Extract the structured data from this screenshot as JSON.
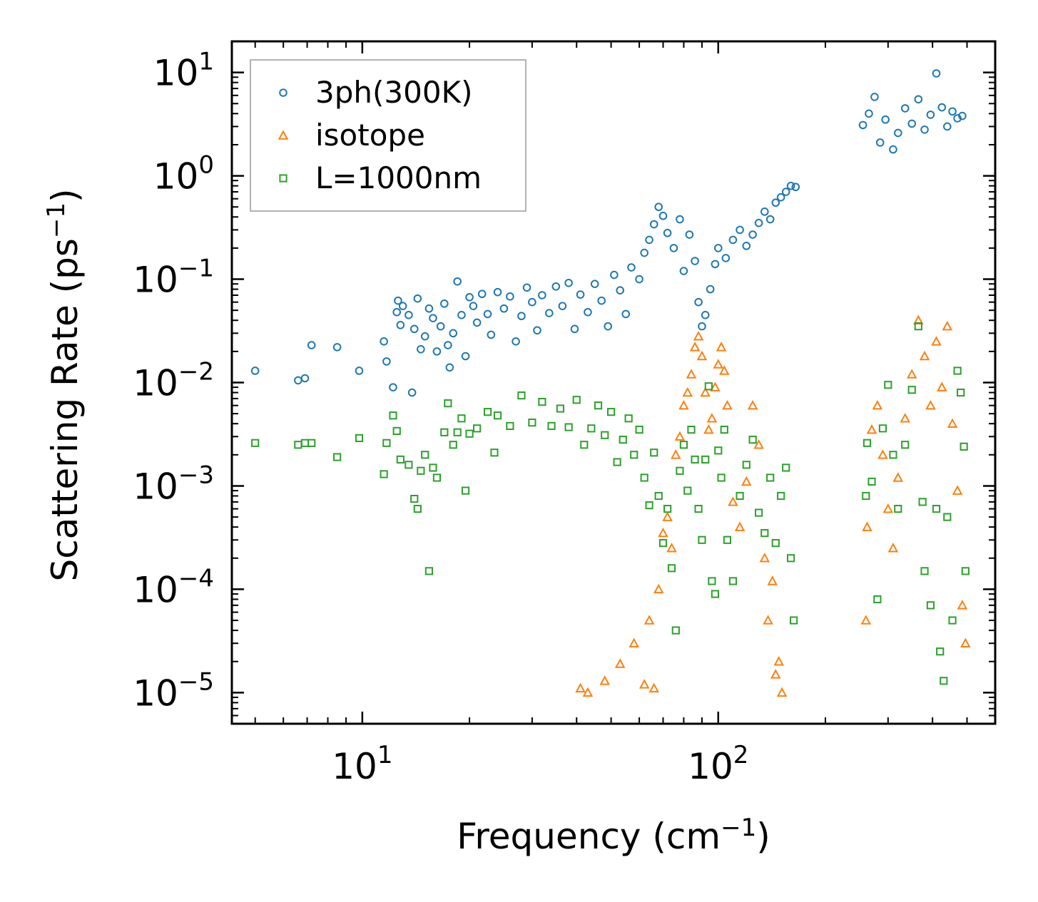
{
  "chart_data": {
    "type": "scatter",
    "title": "",
    "xlabel": {
      "base": "Frequency (cm",
      "sup": "−1",
      "close": ")"
    },
    "ylabel": {
      "base": "Scattering Rate (ps",
      "sup": "−1",
      "close": ")"
    },
    "xscale": "log",
    "yscale": "log",
    "xlim": [
      4.3,
      600
    ],
    "ylim": [
      5e-06,
      20
    ],
    "x_ticks": [
      {
        "value": 10,
        "base": "10",
        "exp": "1"
      },
      {
        "value": 100,
        "base": "10",
        "exp": "2"
      }
    ],
    "y_ticks": [
      {
        "value": 10,
        "base": "10",
        "exp": "1"
      },
      {
        "value": 1,
        "base": "10",
        "exp": "0"
      },
      {
        "value": 0.1,
        "base": "10",
        "exp": "−1"
      },
      {
        "value": 0.01,
        "base": "10",
        "exp": "−2"
      },
      {
        "value": 0.001,
        "base": "10",
        "exp": "−3"
      },
      {
        "value": 0.0001,
        "base": "10",
        "exp": "−4"
      },
      {
        "value": 1e-05,
        "base": "10",
        "exp": "−5"
      }
    ],
    "legend_position": "top-left",
    "series": [
      {
        "name": "3ph(300K)",
        "marker": "circle",
        "color": "#1f77b4",
        "points": [
          [
            5.0,
            0.013
          ],
          [
            6.6,
            0.0105
          ],
          [
            6.9,
            0.011
          ],
          [
            7.2,
            0.023
          ],
          [
            8.5,
            0.022
          ],
          [
            9.8,
            0.013
          ],
          [
            11.5,
            0.025
          ],
          [
            11.7,
            0.016
          ],
          [
            12.2,
            0.009
          ],
          [
            12.5,
            0.048
          ],
          [
            12.6,
            0.062
          ],
          [
            12.8,
            0.036
          ],
          [
            13.0,
            0.055
          ],
          [
            13.5,
            0.045
          ],
          [
            13.8,
            0.008
          ],
          [
            14.0,
            0.033
          ],
          [
            14.3,
            0.065
          ],
          [
            14.6,
            0.021
          ],
          [
            15.0,
            0.028
          ],
          [
            15.4,
            0.052
          ],
          [
            15.8,
            0.042
          ],
          [
            16.2,
            0.02
          ],
          [
            16.6,
            0.035
          ],
          [
            17.0,
            0.058
          ],
          [
            17.4,
            0.023
          ],
          [
            17.6,
            0.014
          ],
          [
            18.0,
            0.03
          ],
          [
            18.5,
            0.095
          ],
          [
            19.0,
            0.045
          ],
          [
            19.5,
            0.018
          ],
          [
            20.0,
            0.067
          ],
          [
            20.5,
            0.055
          ],
          [
            21.0,
            0.038
          ],
          [
            21.7,
            0.072
          ],
          [
            22.5,
            0.046
          ],
          [
            23.0,
            0.029
          ],
          [
            24.0,
            0.075
          ],
          [
            25.0,
            0.052
          ],
          [
            26.0,
            0.068
          ],
          [
            27.0,
            0.025
          ],
          [
            28.0,
            0.044
          ],
          [
            29.0,
            0.083
          ],
          [
            30.0,
            0.06
          ],
          [
            31.0,
            0.032
          ],
          [
            32.0,
            0.07
          ],
          [
            33.5,
            0.047
          ],
          [
            35.0,
            0.085
          ],
          [
            36.5,
            0.055
          ],
          [
            38.0,
            0.092
          ],
          [
            39.5,
            0.033
          ],
          [
            41.0,
            0.071
          ],
          [
            43.0,
            0.048
          ],
          [
            45.0,
            0.09
          ],
          [
            47.0,
            0.062
          ],
          [
            49.0,
            0.035
          ],
          [
            51.0,
            0.11
          ],
          [
            53.0,
            0.078
          ],
          [
            55.0,
            0.046
          ],
          [
            57.0,
            0.13
          ],
          [
            60.0,
            0.1
          ],
          [
            62.0,
            0.18
          ],
          [
            64.0,
            0.24
          ],
          [
            66.0,
            0.34
          ],
          [
            68.0,
            0.5
          ],
          [
            70.0,
            0.41
          ],
          [
            72.0,
            0.28
          ],
          [
            75.0,
            0.2
          ],
          [
            78.0,
            0.38
          ],
          [
            80.0,
            0.12
          ],
          [
            83.0,
            0.27
          ],
          [
            86.0,
            0.15
          ],
          [
            88.0,
            0.06
          ],
          [
            90.0,
            0.035
          ],
          [
            92.0,
            0.045
          ],
          [
            95.0,
            0.08
          ],
          [
            98.0,
            0.14
          ],
          [
            100.0,
            0.2
          ],
          [
            105.0,
            0.16
          ],
          [
            110.0,
            0.24
          ],
          [
            115.0,
            0.3
          ],
          [
            120.0,
            0.21
          ],
          [
            125.0,
            0.27
          ],
          [
            130.0,
            0.35
          ],
          [
            135.0,
            0.45
          ],
          [
            140.0,
            0.38
          ],
          [
            145.0,
            0.55
          ],
          [
            150.0,
            0.62
          ],
          [
            155.0,
            0.7
          ],
          [
            160.0,
            0.8
          ],
          [
            165.0,
            0.78
          ],
          [
            255.0,
            3.1
          ],
          [
            265.0,
            4.0
          ],
          [
            275.0,
            5.8
          ],
          [
            285.0,
            2.1
          ],
          [
            295.0,
            3.5
          ],
          [
            310.0,
            1.8
          ],
          [
            320.0,
            2.6
          ],
          [
            335.0,
            4.5
          ],
          [
            350.0,
            3.2
          ],
          [
            365.0,
            5.5
          ],
          [
            380.0,
            2.8
          ],
          [
            395.0,
            3.9
          ],
          [
            410.0,
            9.8
          ],
          [
            425.0,
            4.6
          ],
          [
            440.0,
            3.0
          ],
          [
            455.0,
            4.2
          ],
          [
            470.0,
            3.6
          ],
          [
            485.0,
            3.8
          ]
        ]
      },
      {
        "name": "isotope",
        "marker": "triangle",
        "color": "#ff7f0e",
        "points": [
          [
            41.0,
            1.1e-05
          ],
          [
            43.0,
            1e-05
          ],
          [
            48.0,
            1.3e-05
          ],
          [
            53.0,
            1.9e-05
          ],
          [
            58.0,
            3e-05
          ],
          [
            62.0,
            1.2e-05
          ],
          [
            64.0,
            5e-05
          ],
          [
            66.0,
            1.1e-05
          ],
          [
            68.0,
            0.0001
          ],
          [
            70.0,
            0.00035
          ],
          [
            72.0,
            0.0005
          ],
          [
            74.0,
            0.00025
          ],
          [
            76.0,
            0.002
          ],
          [
            78.0,
            0.003
          ],
          [
            80.0,
            0.006
          ],
          [
            82.0,
            0.008
          ],
          [
            84.0,
            0.012
          ],
          [
            86.0,
            0.022
          ],
          [
            88.0,
            0.028
          ],
          [
            90.0,
            0.018
          ],
          [
            92.0,
            0.008
          ],
          [
            94.0,
            0.0035
          ],
          [
            96.0,
            0.0045
          ],
          [
            98.0,
            0.009
          ],
          [
            100.0,
            0.015
          ],
          [
            102.0,
            0.022
          ],
          [
            104.0,
            0.013
          ],
          [
            106.0,
            0.006
          ],
          [
            110.0,
            0.0007
          ],
          [
            115.0,
            0.0004
          ],
          [
            120.0,
            0.0011
          ],
          [
            125.0,
            0.006
          ],
          [
            130.0,
            0.0025
          ],
          [
            135.0,
            0.0002
          ],
          [
            138.0,
            5e-05
          ],
          [
            142.0,
            0.00012
          ],
          [
            145.0,
            1.5e-05
          ],
          [
            148.0,
            2e-05
          ],
          [
            151.0,
            1e-05
          ],
          [
            260.0,
            5e-05
          ],
          [
            262.0,
            0.0004
          ],
          [
            270.0,
            0.0035
          ],
          [
            280.0,
            0.006
          ],
          [
            290.0,
            0.002
          ],
          [
            300.0,
            0.0006
          ],
          [
            310.0,
            0.00025
          ],
          [
            320.0,
            0.0012
          ],
          [
            335.0,
            0.0045
          ],
          [
            350.0,
            0.012
          ],
          [
            365.0,
            0.04
          ],
          [
            380.0,
            0.018
          ],
          [
            395.0,
            0.006
          ],
          [
            410.0,
            0.025
          ],
          [
            425.0,
            0.009
          ],
          [
            440.0,
            0.035
          ],
          [
            455.0,
            0.004
          ],
          [
            470.0,
            0.0009
          ],
          [
            485.0,
            7e-05
          ],
          [
            495.0,
            3e-05
          ]
        ]
      },
      {
        "name": "L=1000nm",
        "marker": "square",
        "color": "#2ca02c",
        "points": [
          [
            5.0,
            0.0026
          ],
          [
            6.6,
            0.0025
          ],
          [
            6.9,
            0.0026
          ],
          [
            7.2,
            0.0026
          ],
          [
            8.5,
            0.0019
          ],
          [
            9.8,
            0.0029
          ],
          [
            11.5,
            0.0013
          ],
          [
            11.7,
            0.0026
          ],
          [
            12.2,
            0.0048
          ],
          [
            12.5,
            0.0034
          ],
          [
            12.8,
            0.0018
          ],
          [
            13.5,
            0.0016
          ],
          [
            14.0,
            0.00075
          ],
          [
            14.3,
            0.0006
          ],
          [
            14.6,
            0.0014
          ],
          [
            15.0,
            0.002
          ],
          [
            15.4,
            0.00015
          ],
          [
            15.8,
            0.0015
          ],
          [
            16.2,
            0.0012
          ],
          [
            17.0,
            0.0033
          ],
          [
            17.4,
            0.0063
          ],
          [
            18.0,
            0.0025
          ],
          [
            18.5,
            0.0033
          ],
          [
            19.0,
            0.0045
          ],
          [
            19.5,
            0.0009
          ],
          [
            20.0,
            0.0032
          ],
          [
            21.0,
            0.0036
          ],
          [
            22.5,
            0.0052
          ],
          [
            23.5,
            0.0021
          ],
          [
            24.0,
            0.0048
          ],
          [
            26.0,
            0.0038
          ],
          [
            28.0,
            0.0075
          ],
          [
            30.0,
            0.0041
          ],
          [
            32.0,
            0.0065
          ],
          [
            34.0,
            0.0038
          ],
          [
            36.0,
            0.0056
          ],
          [
            38.0,
            0.0037
          ],
          [
            40.0,
            0.0068
          ],
          [
            42.0,
            0.0025
          ],
          [
            44.0,
            0.0036
          ],
          [
            46.0,
            0.006
          ],
          [
            48.0,
            0.0031
          ],
          [
            50.0,
            0.0052
          ],
          [
            52.0,
            0.0017
          ],
          [
            54.0,
            0.0028
          ],
          [
            56.0,
            0.0045
          ],
          [
            58.0,
            0.002
          ],
          [
            60.0,
            0.0035
          ],
          [
            62.0,
            0.0012
          ],
          [
            64.0,
            0.00065
          ],
          [
            66.0,
            0.0021
          ],
          [
            68.0,
            0.0008
          ],
          [
            70.0,
            0.00028
          ],
          [
            72.0,
            0.0006
          ],
          [
            74.0,
            0.00016
          ],
          [
            76.0,
            4e-05
          ],
          [
            78.0,
            0.0014
          ],
          [
            80.0,
            0.0025
          ],
          [
            82.0,
            0.0009
          ],
          [
            84.0,
            0.0035
          ],
          [
            86.0,
            0.0018
          ],
          [
            88.0,
            0.0006
          ],
          [
            90.0,
            0.0003
          ],
          [
            92.0,
            0.0018
          ],
          [
            94.0,
            0.0092
          ],
          [
            96.0,
            0.00012
          ],
          [
            98.0,
            9e-05
          ],
          [
            100.0,
            0.0022
          ],
          [
            102.0,
            0.0012
          ],
          [
            104.0,
            0.0035
          ],
          [
            106.0,
            0.0003
          ],
          [
            110.0,
            0.00012
          ],
          [
            115.0,
            0.0008
          ],
          [
            120.0,
            0.0016
          ],
          [
            125.0,
            0.0028
          ],
          [
            130.0,
            0.00055
          ],
          [
            135.0,
            0.00035
          ],
          [
            140.0,
            0.0012
          ],
          [
            145.0,
            0.00028
          ],
          [
            150.0,
            0.0008
          ],
          [
            155.0,
            0.0015
          ],
          [
            160.0,
            0.0002
          ],
          [
            163.0,
            5e-05
          ],
          [
            260.0,
            0.0008
          ],
          [
            262.0,
            0.0026
          ],
          [
            270.0,
            0.0011
          ],
          [
            280.0,
            8e-05
          ],
          [
            290.0,
            0.0036
          ],
          [
            300.0,
            0.0095
          ],
          [
            310.0,
            0.002
          ],
          [
            320.0,
            0.0006
          ],
          [
            335.0,
            0.0025
          ],
          [
            350.0,
            0.0085
          ],
          [
            365.0,
            0.035
          ],
          [
            375.0,
            0.0007
          ],
          [
            380.0,
            0.00015
          ],
          [
            395.0,
            7e-05
          ],
          [
            410.0,
            0.0006
          ],
          [
            420.0,
            2.5e-05
          ],
          [
            430.0,
            1.3e-05
          ],
          [
            440.0,
            0.0005
          ],
          [
            455.0,
            5e-05
          ],
          [
            470.0,
            0.013
          ],
          [
            480.0,
            0.008
          ],
          [
            490.0,
            0.0024
          ],
          [
            495.0,
            0.00015
          ]
        ]
      }
    ]
  }
}
